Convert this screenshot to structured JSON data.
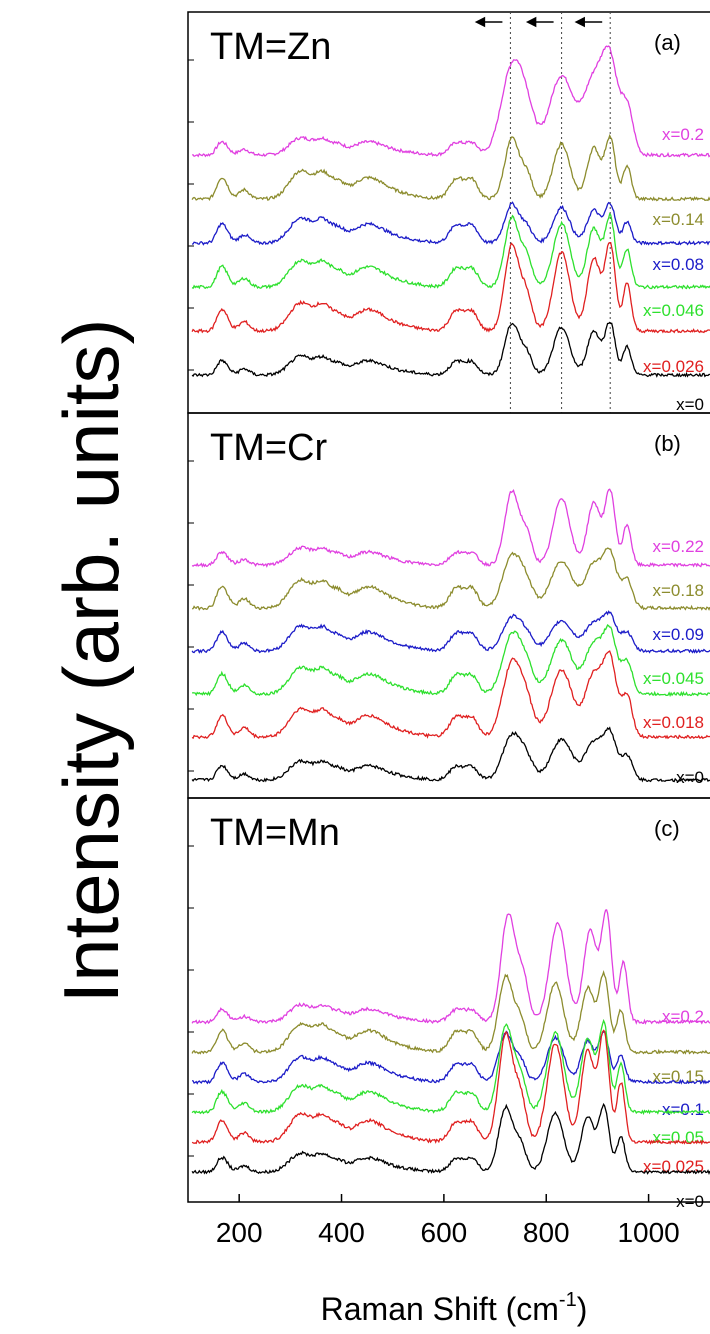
{
  "figure": {
    "ylabel": "Intensity (arb. units)",
    "xlabel_main": "Raman Shift (cm",
    "xlabel_sup": "-1",
    "xlabel_close": ")",
    "xticks": [
      "200",
      "400",
      "600",
      "800",
      "1000"
    ]
  },
  "colors": {
    "magenta": "#e040e0",
    "olive": "#8c8c2e",
    "blue": "#1c1cc8",
    "green": "#2ee02e",
    "red": "#e02020",
    "black": "#000000"
  },
  "chart_data": [
    {
      "type": "line",
      "panel_label": "(a)",
      "title": "TM=Zn",
      "xlim": [
        100,
        1120
      ],
      "xlabel": "Raman Shift (cm-1)",
      "ylabel": "Intensity (arb. units)",
      "guide_lines_x": [
        730,
        830,
        925
      ],
      "arrows": "three left-pointing arrows above the dotted guide lines",
      "series": [
        {
          "name": "x=0.2",
          "color": "#e040e0",
          "offset": 5
        },
        {
          "name": "x=0.14",
          "color": "#8c8c2e",
          "offset": 4
        },
        {
          "name": "x=0.08",
          "color": "#1c1cc8",
          "offset": 3
        },
        {
          "name": "x=0.046",
          "color": "#2ee02e",
          "offset": 2
        },
        {
          "name": "x=0.026",
          "color": "#e02020",
          "offset": 1
        },
        {
          "name": "x=0",
          "color": "#000000",
          "offset": 0
        }
      ]
    },
    {
      "type": "line",
      "panel_label": "(b)",
      "title": "TM=Cr",
      "xlim": [
        100,
        1120
      ],
      "series": [
        {
          "name": "x=0.22",
          "color": "#e040e0",
          "offset": 5
        },
        {
          "name": "x=0.18",
          "color": "#8c8c2e",
          "offset": 4
        },
        {
          "name": "x=0.09",
          "color": "#1c1cc8",
          "offset": 3
        },
        {
          "name": "x=0.045",
          "color": "#2ee02e",
          "offset": 2
        },
        {
          "name": "x=0.018",
          "color": "#e02020",
          "offset": 1
        },
        {
          "name": "x=0",
          "color": "#000000",
          "offset": 0
        }
      ]
    },
    {
      "type": "line",
      "panel_label": "(c)",
      "title": "TM=Mn",
      "xlim": [
        100,
        1120
      ],
      "series": [
        {
          "name": "x=0.2",
          "color": "#e040e0",
          "offset": 5
        },
        {
          "name": "x=0.15",
          "color": "#8c8c2e",
          "offset": 4
        },
        {
          "name": "x=0.1",
          "color": "#1c1cc8",
          "offset": 3
        },
        {
          "name": "x=0.05",
          "color": "#2ee02e",
          "offset": 2
        },
        {
          "name": "x=0.025",
          "color": "#e02020",
          "offset": 1
        },
        {
          "name": "x=0",
          "color": "#000000",
          "offset": 0
        }
      ]
    }
  ]
}
